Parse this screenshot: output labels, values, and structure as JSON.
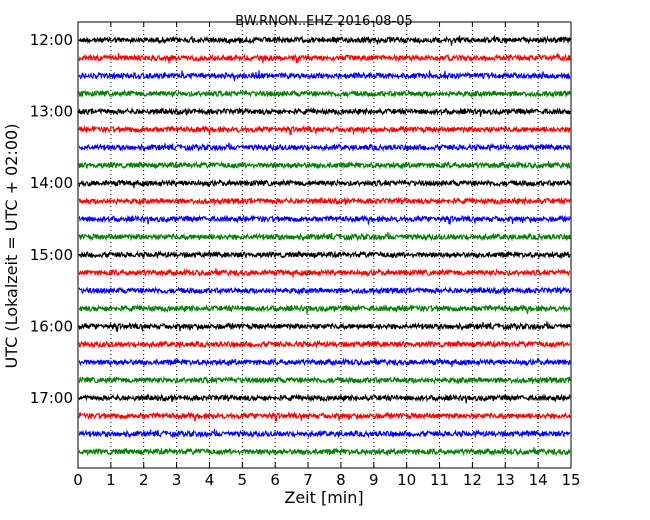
{
  "chart_data": {
    "type": "line",
    "title": "BW.RNON..EHZ 2016-08-05",
    "xlabel": "Zeit  [min]",
    "ylabel": "UTC (Lokalzeit = UTC + 02:00)",
    "xlim": [
      0,
      15
    ],
    "x_ticks": [
      "0",
      "1",
      "2",
      "3",
      "4",
      "5",
      "6",
      "7",
      "8",
      "9",
      "10",
      "11",
      "12",
      "13",
      "14",
      "15"
    ],
    "y_ticks": [
      "12:00",
      "13:00",
      "14:00",
      "15:00",
      "16:00",
      "17:00"
    ],
    "grid": "vertical dotted",
    "colors": [
      "#000000",
      "#ff0000",
      "#0000ff",
      "#008000"
    ],
    "series": [
      {
        "start": "12:00",
        "color": "#000000"
      },
      {
        "start": "12:15",
        "color": "#ff0000"
      },
      {
        "start": "12:30",
        "color": "#0000ff"
      },
      {
        "start": "12:45",
        "color": "#008000"
      },
      {
        "start": "13:00",
        "color": "#000000"
      },
      {
        "start": "13:15",
        "color": "#ff0000"
      },
      {
        "start": "13:30",
        "color": "#0000ff"
      },
      {
        "start": "13:45",
        "color": "#008000"
      },
      {
        "start": "14:00",
        "color": "#000000"
      },
      {
        "start": "14:15",
        "color": "#ff0000"
      },
      {
        "start": "14:30",
        "color": "#0000ff"
      },
      {
        "start": "14:45",
        "color": "#008000"
      },
      {
        "start": "15:00",
        "color": "#000000"
      },
      {
        "start": "15:15",
        "color": "#ff0000"
      },
      {
        "start": "15:30",
        "color": "#0000ff"
      },
      {
        "start": "15:45",
        "color": "#008000"
      },
      {
        "start": "16:00",
        "color": "#000000"
      },
      {
        "start": "16:15",
        "color": "#ff0000"
      },
      {
        "start": "16:30",
        "color": "#0000ff"
      },
      {
        "start": "16:45",
        "color": "#008000"
      },
      {
        "start": "17:00",
        "color": "#000000"
      },
      {
        "start": "17:15",
        "color": "#ff0000"
      },
      {
        "start": "17:30",
        "color": "#0000ff"
      },
      {
        "start": "17:45",
        "color": "#008000"
      }
    ]
  }
}
